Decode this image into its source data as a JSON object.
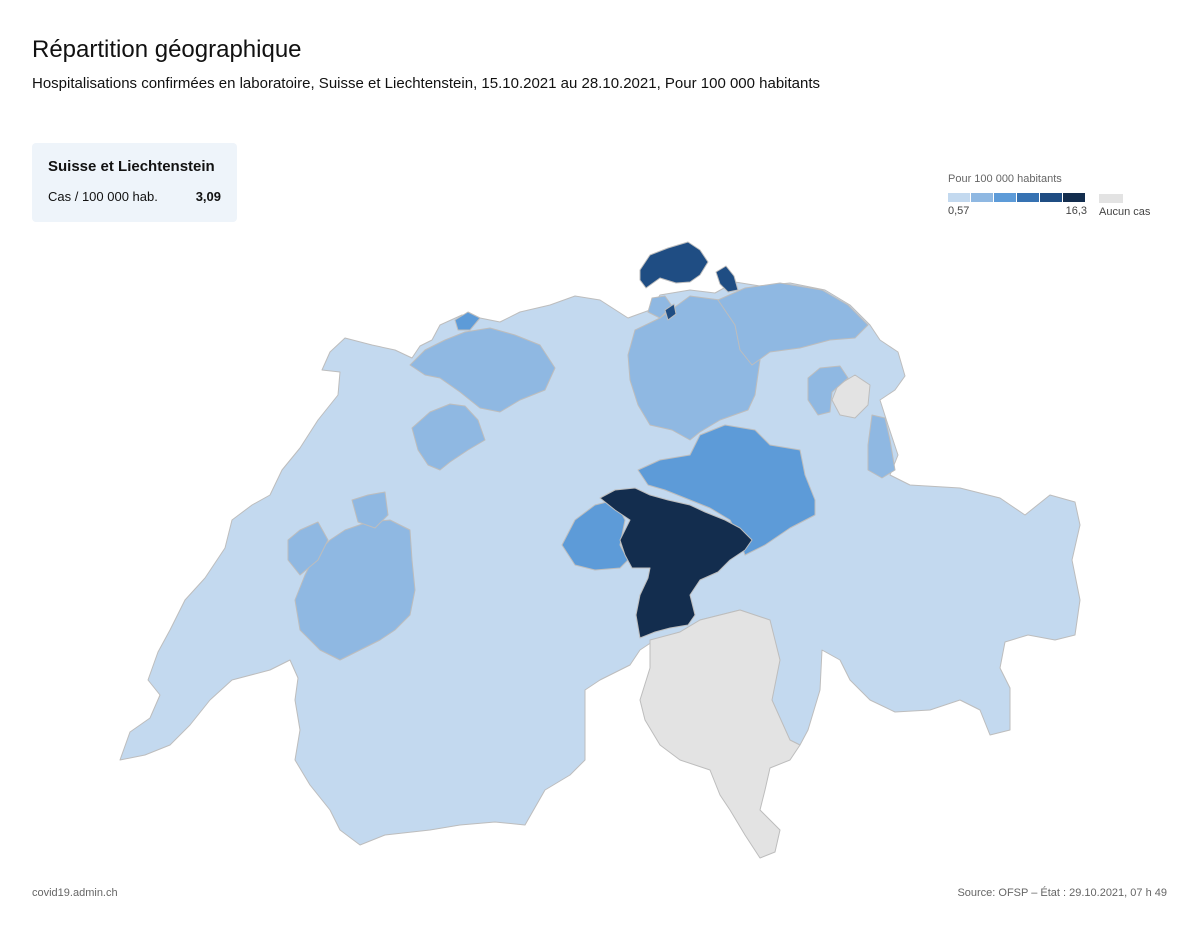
{
  "header": {
    "title": "Répartition géographique",
    "subtitle": "Hospitalisations confirmées en laboratoire, Suisse et Liechtenstein, 15.10.2021 au 28.10.2021, Pour 100 000 habitants"
  },
  "summary": {
    "title": "Suisse et Liechtenstein",
    "label": "Cas / 100 000 hab.",
    "value": "3,09"
  },
  "legend": {
    "title": "Pour 100 000 habitants",
    "min_label": "0,57",
    "max_label": "16,3",
    "none_label": "Aucun cas",
    "colors": [
      "#c3d9ef",
      "#8fb8e2",
      "#5d9bd8",
      "#3672b2",
      "#1f4d83",
      "#132d4e"
    ],
    "none_color": "#e3e3e3"
  },
  "map": {
    "region_colors": {
      "light": "#c3d9ef",
      "mid": "#8fb8e2",
      "medium": "#5d9bd8",
      "dark": "#1f4d83",
      "darkest": "#132d4e",
      "none": "#e3e3e3"
    }
  },
  "footer": {
    "source_left": "covid19.admin.ch",
    "source_right": "Source: OFSP – État : 29.10.2021, 07 h 49"
  }
}
